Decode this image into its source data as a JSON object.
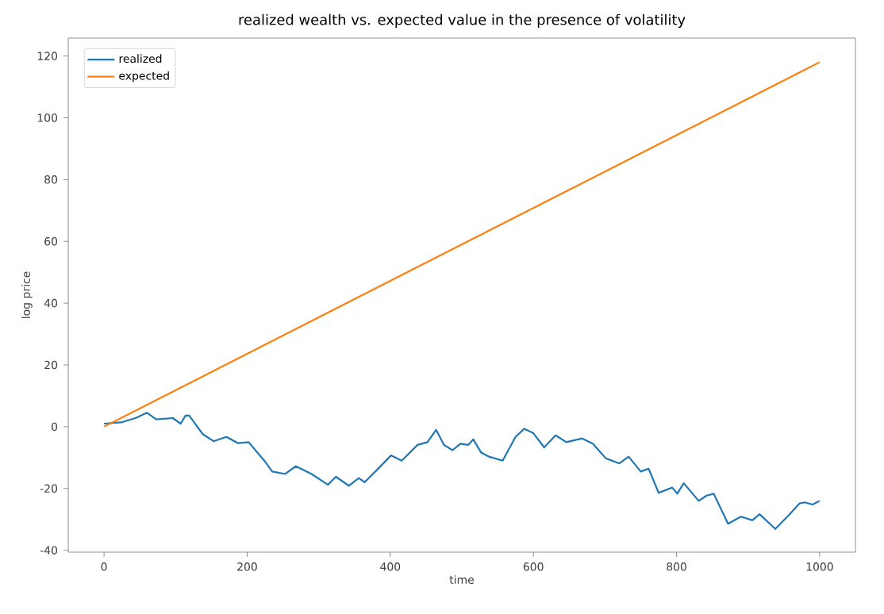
{
  "chart_data": {
    "type": "line",
    "title": "realized wealth vs. expected value in the presence of volatility",
    "xlabel": "time",
    "ylabel": "log price",
    "xlim": [
      -50,
      1050
    ],
    "ylim": [
      -40.6,
      125.8
    ],
    "xticks": [
      0,
      200,
      400,
      600,
      800,
      1000
    ],
    "yticks": [
      -40,
      -20,
      0,
      20,
      40,
      60,
      80,
      100,
      120
    ],
    "legend": "top left",
    "grid": false,
    "series": [
      {
        "name": "realized",
        "color": "#1f77b4",
        "x": [
          0,
          24,
          44,
          60,
          73,
          96,
          107,
          114,
          119,
          138,
          153,
          171,
          187,
          202,
          224,
          235,
          253,
          268,
          290,
          313,
          324,
          342,
          356,
          364,
          383,
          401,
          416,
          438,
          452,
          464,
          475,
          487,
          498,
          509,
          516,
          527,
          538,
          557,
          575,
          587,
          600,
          615,
          631,
          646,
          668,
          683,
          701,
          720,
          733,
          750,
          761,
          775,
          794,
          801,
          810,
          831,
          842,
          852,
          872,
          890,
          906,
          916,
          938,
          957,
          972,
          979,
          990,
          1000
        ],
        "values": [
          1,
          1.4,
          2.8,
          4.5,
          2.4,
          2.8,
          1,
          3.6,
          3.6,
          -2.4,
          -4.7,
          -3.3,
          -5.3,
          -5,
          -11,
          -14.5,
          -15.3,
          -12.8,
          -15.3,
          -18.8,
          -16.2,
          -19.1,
          -16.6,
          -18,
          -13.6,
          -9.3,
          -11,
          -5.9,
          -5,
          -1,
          -5.9,
          -7.6,
          -5.5,
          -5.9,
          -4.1,
          -8.4,
          -9.7,
          -11,
          -3.3,
          -0.7,
          -2.1,
          -6.7,
          -2.8,
          -5,
          -3.8,
          -5.5,
          -10.2,
          -11.9,
          -9.7,
          -14.5,
          -13.6,
          -21.4,
          -19.7,
          -21.7,
          -18.3,
          -24,
          -22.3,
          -21.7,
          -31.4,
          -29.1,
          -30.3,
          -28.3,
          -33.1,
          -28.6,
          -24.8,
          -24.5,
          -25.2,
          -24
        ]
      },
      {
        "name": "expected",
        "color": "#ff7f0e",
        "x": [
          0,
          1000
        ],
        "values": [
          0,
          118
        ]
      }
    ]
  }
}
